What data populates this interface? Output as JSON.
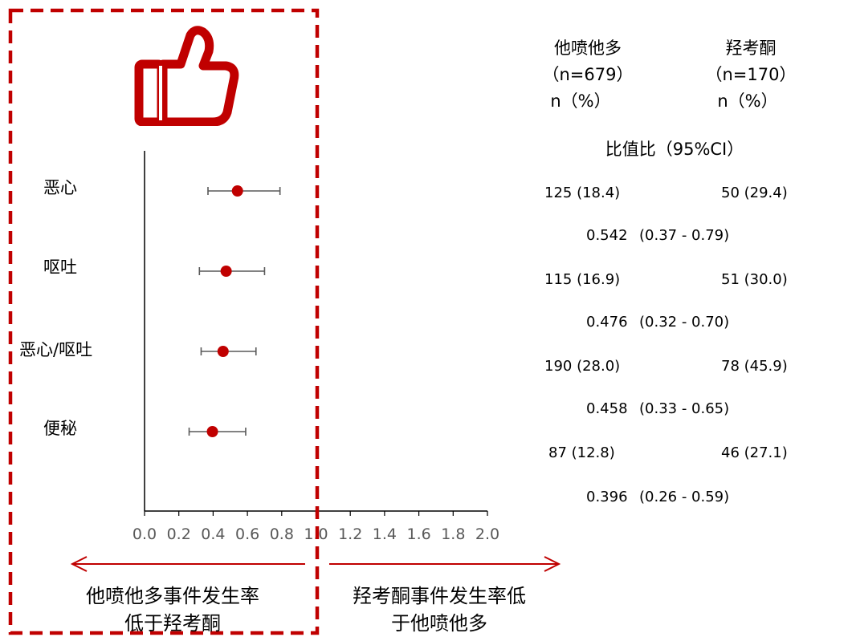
{
  "chart_data": {
    "type": "forest",
    "title": "",
    "xlabel": "",
    "ylabel": "",
    "xlim": [
      0,
      2.0
    ],
    "xticks": [
      "0.0",
      "0.2",
      "0.4",
      "0.6",
      "0.8",
      "1.0",
      "1.2",
      "1.4",
      "1.6",
      "1.8",
      "2.0"
    ],
    "reference_line": 1.0,
    "rows": [
      {
        "label": "恶心",
        "or": 0.542,
        "ci_low": 0.37,
        "ci_high": 0.79,
        "drug_a": "125 (18.4)",
        "drug_b": "50 (29.4)",
        "or_text": "0.542",
        "ci_text": "(0.37 - 0.79)"
      },
      {
        "label": "呕吐",
        "or": 0.476,
        "ci_low": 0.32,
        "ci_high": 0.7,
        "drug_a": "115 (16.9)",
        "drug_b": "51 (30.0)",
        "or_text": "0.476",
        "ci_text": "(0.32 - 0.70)"
      },
      {
        "label": "恶心/呕吐",
        "or": 0.458,
        "ci_low": 0.33,
        "ci_high": 0.65,
        "drug_a": "190 (28.0)",
        "drug_b": "78 (45.9)",
        "or_text": "0.458",
        "ci_text": "(0.33 - 0.65)"
      },
      {
        "label": "便秘",
        "or": 0.396,
        "ci_low": 0.26,
        "ci_high": 0.59,
        "drug_a": "87 (12.8)",
        "drug_b": "46 (27.1)",
        "or_text": "0.396",
        "ci_text": "(0.26 - 0.59)"
      }
    ]
  },
  "table_header": {
    "drug_a_name": "他喷他多",
    "drug_a_n": "（n=679）",
    "drug_a_unit": "n（%）",
    "drug_b_name": "羟考酮",
    "drug_b_n": "（n=170）",
    "drug_b_unit": "n（%）",
    "or_header": "比值比（95%CI）"
  },
  "annotations": {
    "left_text_1": "他喷他多事件发生率",
    "left_text_2": "低于羟考酮",
    "right_text_1": "羟考酮事件发生率低",
    "right_text_2": "于他喷他多"
  },
  "colors": {
    "marker": "#c00000",
    "accent": "#c00000",
    "axis": "#000000",
    "ticktext": "#595959",
    "whisker": "#595959"
  },
  "icons": {
    "thumb": "thumbs-up-icon"
  }
}
